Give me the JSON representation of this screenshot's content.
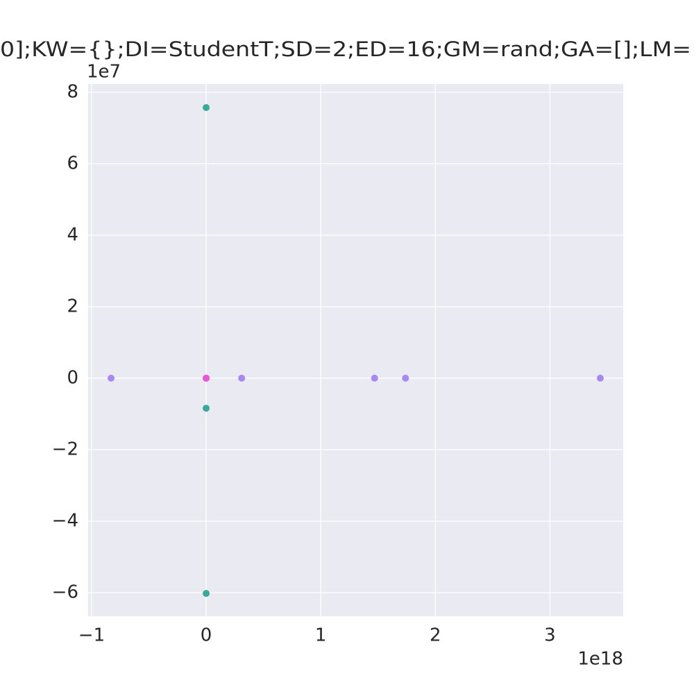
{
  "chart_data": {
    "type": "scatter",
    "title": "0];KW={};DI=StudentT;SD=2;ED=16;GM=rand;GA=[];LM=",
    "x_offset_label": "1e18",
    "y_offset_label": "1e7",
    "xlim": [
      -1.03e+18,
      3.64e+18
    ],
    "ylim": [
      -66600000.0,
      82300000.0
    ],
    "xticks": [
      {
        "value": -1e+18,
        "label": "−1"
      },
      {
        "value": 0,
        "label": "0"
      },
      {
        "value": 1e+18,
        "label": "1"
      },
      {
        "value": 2e+18,
        "label": "2"
      },
      {
        "value": 3e+18,
        "label": "3"
      }
    ],
    "yticks": [
      {
        "value": -60000000.0,
        "label": "−6"
      },
      {
        "value": -40000000.0,
        "label": "−4"
      },
      {
        "value": -20000000.0,
        "label": "−2"
      },
      {
        "value": 0,
        "label": "0"
      },
      {
        "value": 20000000.0,
        "label": "2"
      },
      {
        "value": 40000000.0,
        "label": "4"
      },
      {
        "value": 60000000.0,
        "label": "6"
      },
      {
        "value": 80000000.0,
        "label": "8"
      }
    ],
    "grid": true,
    "series": [
      {
        "color": "#3aa99c",
        "x": [
          0,
          0,
          0
        ],
        "y": [
          75700000.0,
          -8400000.0,
          -60200000.0
        ]
      },
      {
        "color": "#a68af0",
        "x": [
          -8.3e+17,
          0,
          3.1e+17,
          1.47e+18,
          1.74e+18,
          3.44e+18
        ],
        "y": [
          0,
          0,
          0,
          0,
          0,
          0
        ]
      },
      {
        "color": "#e659d6",
        "x": [
          0,
          0
        ],
        "y": [
          0,
          0
        ]
      }
    ]
  }
}
